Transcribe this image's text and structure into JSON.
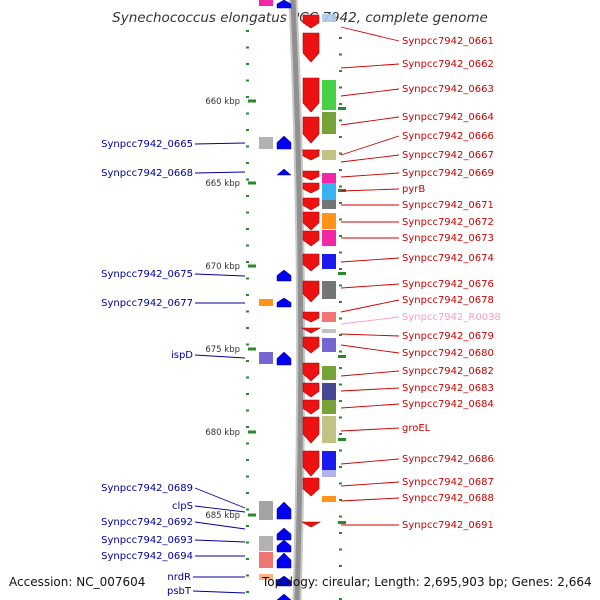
{
  "title": "Synechococcus elongatus PCC 7942, complete genome",
  "footer": {
    "accession": "Accession: NC_007604",
    "topology": "Topology: circular; Length: 2,695,903 bp; Genes: 2,664"
  },
  "colors": {
    "forward_gene": "#ee1111",
    "reverse_gene": "#0000ee",
    "forward_label": "#cc0000",
    "reverse_label": "#000099",
    "rna_label": "#ff99cc",
    "backbone": "#909090",
    "tick": "#2a8a2a"
  },
  "kbp_ticks": [
    {
      "label": "660 kbp"
    },
    {
      "label": "665 kbp"
    },
    {
      "label": "670 kbp"
    },
    {
      "label": "675 kbp"
    },
    {
      "label": "680 kbp"
    },
    {
      "label": "685 kbp"
    }
  ],
  "right_labels": [
    {
      "text": "Synpcc7942_0661",
      "type": "gene"
    },
    {
      "text": "Synpcc7942_0662",
      "type": "gene"
    },
    {
      "text": "Synpcc7942_0663",
      "type": "gene"
    },
    {
      "text": "Synpcc7942_0664",
      "type": "gene"
    },
    {
      "text": "Synpcc7942_0666",
      "type": "gene"
    },
    {
      "text": "Synpcc7942_0667",
      "type": "gene"
    },
    {
      "text": "Synpcc7942_0669",
      "type": "gene"
    },
    {
      "text": "pyrB",
      "type": "gene"
    },
    {
      "text": "Synpcc7942_0671",
      "type": "gene"
    },
    {
      "text": "Synpcc7942_0672",
      "type": "gene"
    },
    {
      "text": "Synpcc7942_0673",
      "type": "gene"
    },
    {
      "text": "Synpcc7942_0674",
      "type": "gene"
    },
    {
      "text": "Synpcc7942_0676",
      "type": "gene"
    },
    {
      "text": "Synpcc7942_0678",
      "type": "gene"
    },
    {
      "text": "Synpcc7942_R0038",
      "type": "rna"
    },
    {
      "text": "Synpcc7942_0679",
      "type": "gene"
    },
    {
      "text": "Synpcc7942_0680",
      "type": "gene"
    },
    {
      "text": "Synpcc7942_0682",
      "type": "gene"
    },
    {
      "text": "Synpcc7942_0683",
      "type": "gene"
    },
    {
      "text": "Synpcc7942_0684",
      "type": "gene"
    },
    {
      "text": "groEL",
      "type": "gene"
    },
    {
      "text": "Synpcc7942_0686",
      "type": "gene"
    },
    {
      "text": "Synpcc7942_0687",
      "type": "gene"
    },
    {
      "text": "Synpcc7942_0688",
      "type": "gene"
    },
    {
      "text": "Synpcc7942_0691",
      "type": "gene"
    }
  ],
  "left_labels": [
    {
      "text": "Synpcc7942_0665"
    },
    {
      "text": "Synpcc7942_0668"
    },
    {
      "text": "Synpcc7942_0675"
    },
    {
      "text": "Synpcc7942_0677"
    },
    {
      "text": "ispD"
    },
    {
      "text": "Synpcc7942_0689"
    },
    {
      "text": "clpS"
    },
    {
      "text": "Synpcc7942_0692"
    },
    {
      "text": "Synpcc7942_0693"
    },
    {
      "text": "Synpcc7942_0694"
    },
    {
      "text": "nrdR"
    },
    {
      "text": "psbT"
    }
  ]
}
